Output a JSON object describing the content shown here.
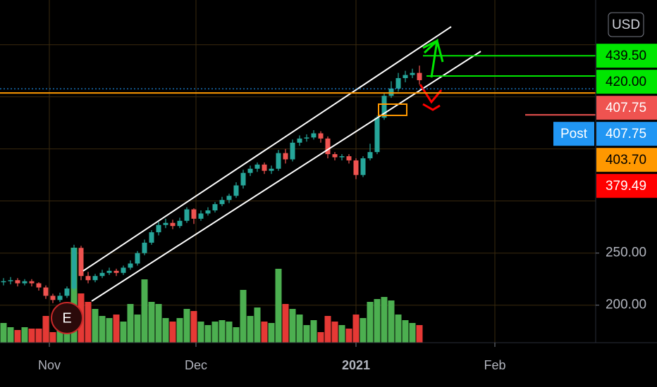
{
  "chart_data": {
    "type": "candlestick",
    "currency": "USD",
    "event_marker": "E",
    "event_index": 9,
    "up_color": "#26a69a",
    "down_color": "#ef5350",
    "volume_up_color": "#4caf50",
    "volume_down_color": "#e53935",
    "xlim": [
      -0.5,
      84
    ],
    "xticks": [
      {
        "value": 6.5,
        "label": "Nov"
      },
      {
        "value": 27.3,
        "label": "Dec"
      },
      {
        "value": 50,
        "label": "2021"
      },
      {
        "value": 69.7,
        "label": "Feb"
      }
    ],
    "ylim": [
      164,
      493
    ],
    "yticks": [
      {
        "value": 200,
        "label": "200.00"
      },
      {
        "value": 250,
        "label": "250.00"
      }
    ],
    "grid_y": [
      200,
      250,
      300,
      350,
      400,
      450
    ],
    "grid": true,
    "volume_lim": [
      0,
      487
    ],
    "open": [
      222,
      223,
      224,
      221,
      223,
      221,
      217,
      209,
      205,
      209,
      216,
      255,
      228,
      224,
      228,
      231,
      233,
      231,
      236,
      240,
      250,
      260,
      270,
      277,
      279,
      276,
      281,
      292,
      283,
      288,
      291,
      297,
      301,
      305,
      315,
      327,
      331,
      335,
      329,
      331,
      346,
      340,
      356,
      360,
      361,
      365,
      360,
      345,
      342,
      343,
      339,
      325,
      341,
      347,
      380,
      401,
      408,
      418,
      421,
      423
    ],
    "high": [
      226,
      227,
      226,
      225,
      225,
      222,
      219,
      211,
      212,
      218,
      258,
      257,
      232,
      230,
      234,
      236,
      235,
      238,
      243,
      252,
      263,
      272,
      280,
      283,
      282,
      284,
      294,
      293,
      291,
      294,
      299,
      304,
      307,
      318,
      330,
      334,
      337,
      337,
      334,
      349,
      350,
      359,
      363,
      364,
      368,
      367,
      362,
      347,
      345,
      345,
      341,
      343,
      355,
      382,
      404,
      415,
      423,
      425,
      427,
      430
    ],
    "low": [
      219,
      220,
      218,
      219,
      218,
      214,
      206,
      202,
      203,
      207,
      214,
      224,
      221,
      222,
      226,
      229,
      228,
      229,
      234,
      238,
      248,
      258,
      267,
      274,
      273,
      274,
      279,
      278,
      281,
      286,
      289,
      295,
      298,
      303,
      312,
      324,
      328,
      326,
      326,
      329,
      336,
      338,
      353,
      357,
      359,
      356,
      341,
      339,
      339,
      336,
      321,
      323,
      339,
      345,
      378,
      399,
      405,
      414,
      418,
      412
    ],
    "close": [
      223,
      224,
      221,
      223,
      221,
      217,
      209,
      205,
      209,
      216,
      255,
      228,
      224,
      228,
      231,
      233,
      231,
      236,
      240,
      250,
      260,
      270,
      277,
      279,
      276,
      281,
      292,
      283,
      288,
      291,
      297,
      301,
      305,
      315,
      327,
      331,
      335,
      329,
      331,
      346,
      340,
      356,
      360,
      361,
      365,
      360,
      345,
      342,
      343,
      339,
      325,
      341,
      347,
      380,
      401,
      408,
      418,
      421,
      423,
      416
    ],
    "volume": [
      28,
      22,
      18,
      22,
      20,
      20,
      38,
      15,
      25,
      45,
      135,
      70,
      58,
      48,
      38,
      35,
      40,
      30,
      55,
      40,
      90,
      58,
      55,
      35,
      30,
      35,
      48,
      45,
      30,
      25,
      30,
      32,
      30,
      22,
      75,
      38,
      50,
      30,
      28,
      105,
      55,
      48,
      40,
      25,
      32,
      15,
      38,
      30,
      25,
      20,
      40,
      35,
      58,
      62,
      65,
      60,
      40,
      32,
      28,
      25
    ],
    "price_labels": [
      {
        "value": 439.5,
        "label": "439.50",
        "color": "#00e600",
        "text_color": "#000000"
      },
      {
        "value": 420,
        "label": "420.00",
        "color": "#00e600",
        "text_color": "#000000"
      },
      {
        "value": 407.75,
        "label": "407.75",
        "color": "#ef5350",
        "text_color": "#ffffff"
      },
      {
        "name": "Post",
        "value": 407.75,
        "label": "407.75",
        "color": "#2196f3",
        "text_color": "#ffffff"
      },
      {
        "value": 403.7,
        "label": "403.70",
        "color": "#ff9800",
        "text_color": "#000000"
      },
      {
        "value": 379.49,
        "label": "379.49",
        "color": "#ff0000",
        "text_color": "#ffffff"
      }
    ]
  }
}
